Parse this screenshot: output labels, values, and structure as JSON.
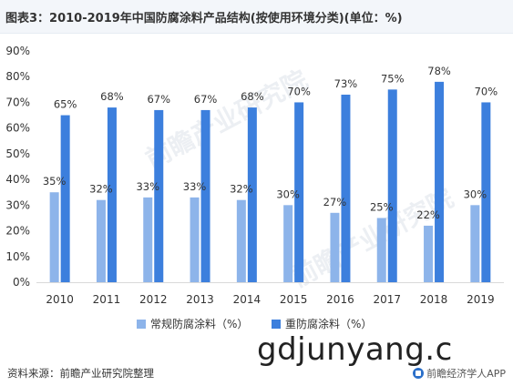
{
  "header": {
    "title": "图表3：2010-2019年中国防腐涂料产品结构(按使用环境分类)(单位：%)"
  },
  "chart_data": {
    "type": "bar",
    "categories": [
      "2010",
      "2011",
      "2012",
      "2013",
      "2014",
      "2015",
      "2016",
      "2017",
      "2018",
      "2019"
    ],
    "series": [
      {
        "name": "常规防腐涂料（%）",
        "color": "#8db4ea",
        "values": [
          35,
          32,
          33,
          33,
          32,
          30,
          27,
          25,
          22,
          30
        ],
        "labels": [
          "35%",
          "32%",
          "33%",
          "33%",
          "32%",
          "30%",
          "27%",
          "25%",
          "22%",
          "30%"
        ]
      },
      {
        "name": "重防腐涂料（%）",
        "color": "#3c7fdd",
        "values": [
          65,
          68,
          67,
          67,
          68,
          70,
          73,
          75,
          78,
          70
        ],
        "labels": [
          "65%",
          "68%",
          "67%",
          "67%",
          "68%",
          "70%",
          "73%",
          "75%",
          "78%",
          "70%"
        ]
      }
    ],
    "yticks": [
      "0%",
      "10%",
      "20%",
      "30%",
      "40%",
      "50%",
      "60%",
      "70%",
      "80%",
      "90%"
    ],
    "ylim": [
      0,
      90
    ],
    "grid": false,
    "legend_position": "bottom"
  },
  "legend": {
    "items": [
      {
        "label": "常规防腐涂料（%）",
        "color": "#8db4ea"
      },
      {
        "label": "重防腐涂料（%）",
        "color": "#3c7fdd"
      }
    ]
  },
  "footer": {
    "source": "资料来源：前瞻产业研究院整理",
    "brand": "前瞻经济学人APP"
  },
  "watermarks": {
    "overlay": "gdjunyang.c",
    "faint": "前瞻产业研究院"
  }
}
